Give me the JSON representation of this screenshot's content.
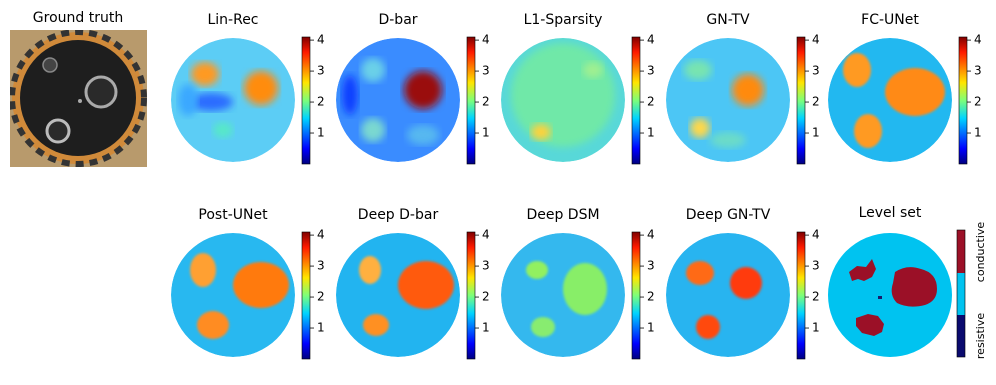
{
  "ground_truth": {
    "title": "Ground truth"
  },
  "panels": [
    {
      "title": "Lin-Rec",
      "colorbar": {
        "lim": [
          0,
          4.1
        ],
        "ticks": [
          1,
          2,
          3,
          4
        ]
      }
    },
    {
      "title": "D-bar",
      "colorbar": {
        "lim": [
          0,
          4.1
        ],
        "ticks": [
          1,
          2,
          3,
          4
        ]
      }
    },
    {
      "title": "L1-Sparsity",
      "colorbar": {
        "lim": [
          0,
          4.1
        ],
        "ticks": [
          1,
          2,
          3,
          4
        ]
      }
    },
    {
      "title": "GN-TV",
      "colorbar": {
        "lim": [
          0,
          4.1
        ],
        "ticks": [
          1,
          2,
          3,
          4
        ]
      }
    },
    {
      "title": "FC-UNet",
      "colorbar": {
        "lim": [
          0,
          4.1
        ],
        "ticks": [
          1,
          2,
          3,
          4
        ]
      }
    },
    {
      "title": "Post-UNet",
      "colorbar": {
        "lim": [
          0,
          4.1
        ],
        "ticks": [
          1,
          2,
          3,
          4
        ]
      }
    },
    {
      "title": "Deep D-bar",
      "colorbar": {
        "lim": [
          0,
          4.1
        ],
        "ticks": [
          1,
          2,
          3,
          4
        ]
      }
    },
    {
      "title": "Deep DSM",
      "colorbar": {
        "lim": [
          0,
          4.1
        ],
        "ticks": [
          1,
          2,
          3,
          4
        ]
      }
    },
    {
      "title": "Deep GN-TV",
      "colorbar": {
        "lim": [
          0,
          4.1
        ],
        "ticks": [
          1,
          2,
          3,
          4
        ]
      }
    }
  ],
  "level_set": {
    "title": "Level set",
    "labels": [
      "conductive",
      "resistive"
    ]
  }
}
